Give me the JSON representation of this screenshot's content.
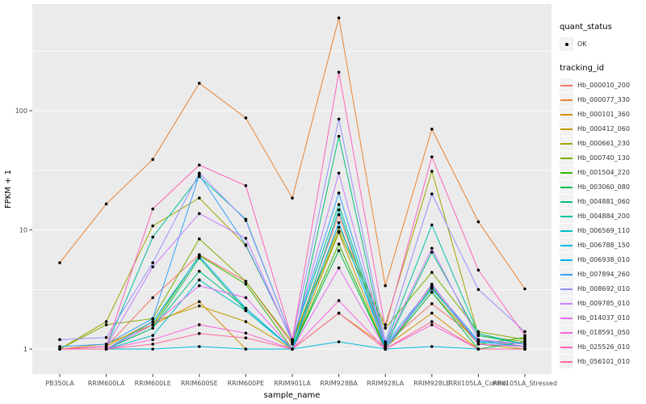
{
  "figure": {
    "background": "#FFFFFF",
    "panel_background": "#EBEBEB",
    "grid_color": "#FFFFFF",
    "tick_color": "#333333",
    "tick_label_color": "#4D4D4D",
    "axis_title_color": "#000000",
    "point_color": "#000000"
  },
  "legend": {
    "quant_status": {
      "title": "quant_status",
      "items": [
        {
          "label": "OK",
          "marker": "black-point"
        }
      ]
    },
    "tracking_id": {
      "title": "tracking_id"
    }
  },
  "chart_data": {
    "type": "line",
    "title": "",
    "xlabel": "sample_name",
    "ylabel": "FPKM + 1",
    "y_scale": "log10",
    "y_ticks": [
      1,
      10,
      100
    ],
    "y_tick_labels": [
      "1",
      "10",
      "100"
    ],
    "y_minor_ticks": [
      3.16,
      31.6,
      316
    ],
    "ylim": [
      0.63,
      780
    ],
    "grid": true,
    "legend_position": "right",
    "point_marker": "every observation carries a small black point (quant_status = OK)",
    "categories": [
      "PB350LA",
      "RRIM600LA",
      "RRIM600LE",
      "RRIM600SE",
      "RRIM600PE",
      "RRIM901LA",
      "RRIM928BA",
      "RRIM928LA",
      "RRIM928LE",
      "RRII105LA_Control",
      "RRII105LA_Stressed"
    ],
    "series": [
      {
        "name": "Hb_000010_200",
        "color": "#F8766D",
        "values": [
          1.0,
          1.05,
          2.7,
          6.2,
          3.7,
          1.1,
          13.4,
          1.1,
          2.4,
          1.2,
          1.05
        ]
      },
      {
        "name": "Hb_000077_330",
        "color": "#EA8331",
        "values": [
          5.3,
          16.5,
          39,
          170,
          87,
          18.5,
          600,
          3.4,
          70,
          11.7,
          3.2
        ]
      },
      {
        "name": "Hb_000101_360",
        "color": "#D89000",
        "values": [
          1.0,
          1.1,
          1.6,
          2.5,
          1.0,
          1.0,
          2.0,
          1.05,
          2.0,
          1.0,
          1.0
        ]
      },
      {
        "name": "Hb_000412_060",
        "color": "#C09B00",
        "values": [
          1.0,
          1.05,
          1.7,
          2.3,
          1.7,
          1.0,
          9.5,
          1.0,
          3.0,
          1.1,
          1.0
        ]
      },
      {
        "name": "Hb_000661_230",
        "color": "#A3A500",
        "values": [
          1.0,
          1.7,
          10.8,
          18.5,
          7.4,
          1.2,
          10.5,
          1.6,
          31,
          1.3,
          1.15
        ]
      },
      {
        "name": "Hb_000740_130",
        "color": "#7CAE00",
        "values": [
          1.0,
          1.6,
          1.8,
          8.4,
          3.7,
          1.15,
          9.7,
          1.5,
          4.4,
          1.4,
          1.2
        ]
      },
      {
        "name": "Hb_001504_220",
        "color": "#39B600",
        "values": [
          1.0,
          1.0,
          1.6,
          6.1,
          3.5,
          1.0,
          7.6,
          1.0,
          3.3,
          1.1,
          1.25
        ]
      },
      {
        "name": "Hb_003060_080",
        "color": "#00BB4E",
        "values": [
          1.0,
          1.0,
          1.5,
          5.8,
          2.1,
          1.0,
          6.7,
          1.0,
          3.0,
          1.0,
          1.15
        ]
      },
      {
        "name": "Hb_004881_060",
        "color": "#00BF7D",
        "values": [
          1.0,
          1.0,
          1.5,
          4.5,
          2.2,
          1.0,
          61,
          1.05,
          6.5,
          1.3,
          1.1
        ]
      },
      {
        "name": "Hb_004884_200",
        "color": "#00C1A3",
        "values": [
          1.0,
          1.05,
          8.7,
          28,
          12.3,
          1.2,
          16.3,
          1.1,
          11,
          1.35,
          1.1
        ]
      },
      {
        "name": "Hb_006569_110",
        "color": "#00BFC4",
        "values": [
          1.0,
          1.0,
          1.3,
          3.8,
          2.1,
          1.0,
          14.7,
          1.0,
          3.5,
          1.1,
          1.05
        ]
      },
      {
        "name": "Hb_006788_150",
        "color": "#00BAE0",
        "values": [
          1.0,
          1.0,
          1.0,
          1.05,
          1.0,
          1.0,
          1.15,
          1.0,
          1.05,
          1.0,
          1.0
        ]
      },
      {
        "name": "Hb_006938_010",
        "color": "#00B0F6",
        "values": [
          1.0,
          1.0,
          1.7,
          6.0,
          2.2,
          1.0,
          11.5,
          1.05,
          3.2,
          1.15,
          1.05
        ]
      },
      {
        "name": "Hb_007894_260",
        "color": "#35A2FF",
        "values": [
          1.05,
          1.1,
          1.8,
          29,
          7.5,
          1.2,
          20.4,
          1.1,
          3.4,
          1.17,
          1.1
        ]
      },
      {
        "name": "Hb_008692_010",
        "color": "#9590FF",
        "values": [
          1.2,
          1.25,
          5.3,
          30,
          12,
          1.2,
          85,
          1.15,
          20,
          3.16,
          1.4
        ]
      },
      {
        "name": "Hb_009785_010",
        "color": "#C77CFF",
        "values": [
          1.0,
          1.05,
          4.9,
          13.7,
          8.5,
          1.15,
          30,
          1.1,
          7.0,
          1.2,
          1.1
        ]
      },
      {
        "name": "Hb_014037_010",
        "color": "#E76BF3",
        "values": [
          1.0,
          1.0,
          1.6,
          3.4,
          2.7,
          1.0,
          4.8,
          1.0,
          3.5,
          1.1,
          1.05
        ]
      },
      {
        "name": "Hb_018591_050",
        "color": "#FA62DB",
        "values": [
          1.0,
          1.0,
          1.2,
          1.6,
          1.36,
          1.0,
          2.55,
          1.0,
          1.6,
          1.0,
          1.0
        ]
      },
      {
        "name": "Hb_025526_010",
        "color": "#FF62BC",
        "values": [
          1.0,
          1.05,
          15,
          35,
          23.5,
          1.2,
          210,
          1.5,
          41,
          4.6,
          1.3
        ]
      },
      {
        "name": "Hb_056101_010",
        "color": "#FF6A98",
        "values": [
          1.0,
          1.0,
          1.1,
          1.35,
          1.24,
          1.0,
          2.0,
          1.0,
          1.7,
          1.0,
          1.0
        ]
      }
    ]
  }
}
